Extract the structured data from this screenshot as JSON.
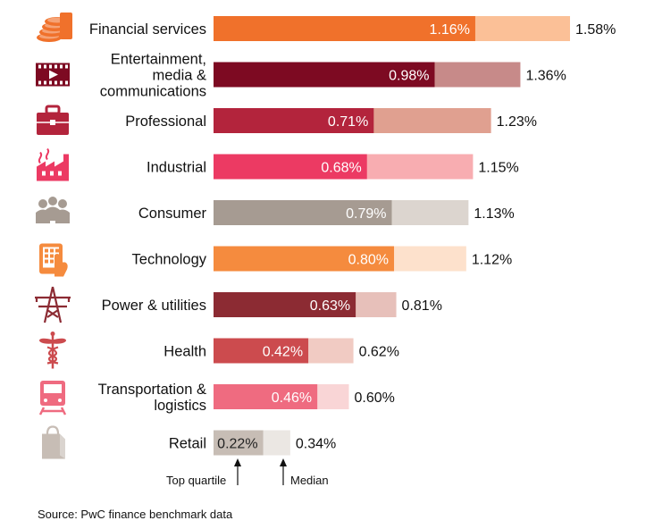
{
  "chart_data": {
    "type": "bar",
    "orientation": "horizontal",
    "categories": [
      "Financial services",
      "Entertainment, media & communications",
      "Professional",
      "Industrial",
      "Consumer",
      "Technology",
      "Power & utilities",
      "Health",
      "Transportation & logistics",
      "Retail"
    ],
    "label_lines": [
      [
        "Financial services"
      ],
      [
        "Entertainment,",
        "media &",
        "communications"
      ],
      [
        "Professional"
      ],
      [
        "Industrial"
      ],
      [
        "Consumer"
      ],
      [
        "Technology"
      ],
      [
        "Power & utilities"
      ],
      [
        "Health"
      ],
      [
        "Transportation &",
        "logistics"
      ],
      [
        "Retail"
      ]
    ],
    "icons": [
      "coin-stack-icon",
      "film-strip-icon",
      "briefcase-icon",
      "factory-icon",
      "people-group-icon",
      "tablet-touch-icon",
      "power-pylon-icon",
      "caduceus-icon",
      "train-icon",
      "shopping-bag-icon"
    ],
    "series": [
      {
        "name": "Top quartile",
        "values": [
          1.16,
          0.98,
          0.71,
          0.68,
          0.79,
          0.8,
          0.63,
          0.42,
          0.46,
          0.22
        ],
        "labels": [
          "1.16%",
          "0.98%",
          "0.71%",
          "0.68%",
          "0.79%",
          "0.80%",
          "0.63%",
          "0.42%",
          "0.46%",
          "0.22%"
        ]
      },
      {
        "name": "Median",
        "values": [
          1.58,
          1.36,
          1.23,
          1.15,
          1.13,
          1.12,
          0.81,
          0.62,
          0.6,
          0.34
        ],
        "labels": [
          "1.58%",
          "1.36%",
          "1.23%",
          "1.15%",
          "1.13%",
          "1.12%",
          "0.81%",
          "0.62%",
          "0.60%",
          "0.34%"
        ]
      }
    ],
    "colors": {
      "top": [
        "#f0712b",
        "#7d0a22",
        "#b3243c",
        "#ec3a63",
        "#a69b92",
        "#f58b3e",
        "#8c2b33",
        "#cc4b4e",
        "#ef6b80",
        "#c7bdb5"
      ],
      "median": [
        "#fbc097",
        "#c78a89",
        "#e0a090",
        "#f8adb1",
        "#dcd5cf",
        "#fde1cc",
        "#e7c0ba",
        "#f1cbc3",
        "#f9d5d6",
        "#ebe7e3"
      ],
      "icon": [
        "#f0712b",
        "#7d0a22",
        "#b3243c",
        "#ec3a63",
        "#a69b92",
        "#f58b3e",
        "#8c2b33",
        "#cc4b4e",
        "#ef6b80",
        "#c7bdb5"
      ]
    },
    "legend": {
      "top_quartile": "Top quartile",
      "median": "Median"
    },
    "xlim": [
      0,
      1.58
    ],
    "source": "Source: PwC finance benchmark data"
  }
}
